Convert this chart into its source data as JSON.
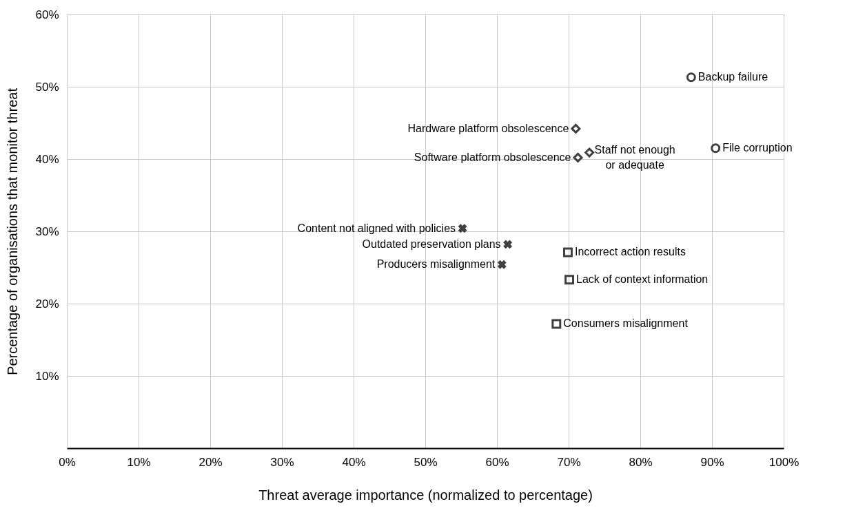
{
  "chart_data": {
    "type": "scatter",
    "xlabel": "Threat average importance (normalized to percentage)",
    "ylabel": "Percentage of organisations that monitor threat",
    "xlim": [
      0,
      100
    ],
    "xticks": [
      {
        "value": 0,
        "label": "0%"
      },
      {
        "value": 10,
        "label": "10%"
      },
      {
        "value": 20,
        "label": "20%"
      },
      {
        "value": 30,
        "label": "30%"
      },
      {
        "value": 40,
        "label": "40%"
      },
      {
        "value": 50,
        "label": "50%"
      },
      {
        "value": 60,
        "label": "60%"
      },
      {
        "value": 70,
        "label": "70%"
      },
      {
        "value": 80,
        "label": "80%"
      },
      {
        "value": 90,
        "label": "90%"
      },
      {
        "value": 100,
        "label": "100%"
      }
    ],
    "ylim": [
      0,
      60
    ],
    "yticks": [
      {
        "value": 10,
        "label": "10%"
      },
      {
        "value": 20,
        "label": "20%"
      },
      {
        "value": 30,
        "label": "30%"
      },
      {
        "value": 40,
        "label": "40%"
      },
      {
        "value": 50,
        "label": "50%"
      },
      {
        "value": 60,
        "label": "60%"
      }
    ],
    "grid": true,
    "series": [
      {
        "color": "#404040",
        "marker": "circle",
        "x": [
          87.1,
          90.5
        ],
        "values": [
          51.3,
          41.5
        ]
      },
      {
        "color": "#404040",
        "marker": "diamond",
        "x": [
          71.0,
          71.3,
          72.9
        ],
        "values": [
          44.2,
          40.2,
          40.9
        ]
      },
      {
        "color": "#404040",
        "marker": "cross",
        "x": [
          55.2,
          61.5,
          60.7
        ],
        "values": [
          30.4,
          28.2,
          25.4
        ]
      },
      {
        "color": "#404040",
        "marker": "square",
        "x": [
          69.9,
          70.1,
          68.3
        ],
        "values": [
          27.1,
          23.3,
          17.2
        ]
      }
    ],
    "annotations": [
      {
        "text": "Backup failure",
        "x": 87.1,
        "y": 51.3
      },
      {
        "text": "File corruption",
        "x": 90.5,
        "y": 41.5
      },
      {
        "text": "Hardware platform obsolescence",
        "x": 71.0,
        "y": 44.2
      },
      {
        "text": "Software platform obsolescence",
        "x": 71.3,
        "y": 40.2
      },
      {
        "text": "Staff not enough\nor adequate",
        "x": 72.9,
        "y": 40.9
      },
      {
        "text": "Content not aligned with policies",
        "x": 55.2,
        "y": 30.4
      },
      {
        "text": "Outdated preservation plans",
        "x": 61.5,
        "y": 28.2
      },
      {
        "text": "Producers misalignment",
        "x": 60.7,
        "y": 25.4
      },
      {
        "text": "Incorrect action results",
        "x": 69.9,
        "y": 27.1
      },
      {
        "text": "Lack of context information",
        "x": 70.1,
        "y": 23.3
      },
      {
        "text": "Consumers misalignment",
        "x": 68.3,
        "y": 17.2
      }
    ]
  }
}
